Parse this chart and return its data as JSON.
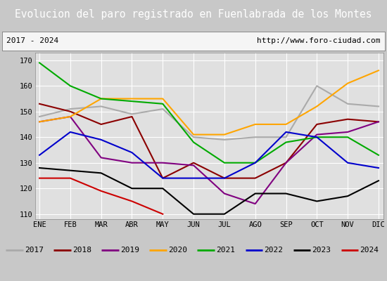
{
  "title": "Evolucion del paro registrado en Fuenlabrada de los Montes",
  "subtitle_left": "2017 - 2024",
  "subtitle_right": "http://www.foro-ciudad.com",
  "month_labels": [
    "ENE",
    "FEB",
    "MAR",
    "ABR",
    "MAY",
    "JUN",
    "JUL",
    "AGO",
    "SEP",
    "OCT",
    "NOV",
    "DIC"
  ],
  "ylim": [
    108,
    173
  ],
  "yticks": [
    110,
    120,
    130,
    140,
    150,
    160,
    170
  ],
  "series": {
    "2017": {
      "color": "#aaaaaa",
      "values": [
        148,
        151,
        152,
        149,
        151,
        140,
        139,
        140,
        140,
        160,
        153,
        152
      ]
    },
    "2018": {
      "color": "#8b0000",
      "values": [
        153,
        150,
        145,
        148,
        124,
        130,
        124,
        124,
        130,
        145,
        147,
        146
      ]
    },
    "2019": {
      "color": "#800080",
      "values": [
        146,
        148,
        132,
        130,
        130,
        129,
        118,
        114,
        130,
        141,
        142,
        146
      ]
    },
    "2020": {
      "color": "#ffa500",
      "values": [
        146,
        148,
        155,
        155,
        155,
        141,
        141,
        145,
        145,
        152,
        161,
        166
      ]
    },
    "2021": {
      "color": "#00aa00",
      "values": [
        169,
        160,
        155,
        154,
        153,
        138,
        130,
        130,
        138,
        140,
        140,
        133
      ]
    },
    "2022": {
      "color": "#0000cc",
      "values": [
        133,
        142,
        139,
        134,
        124,
        124,
        124,
        130,
        142,
        140,
        130,
        128
      ]
    },
    "2023": {
      "color": "#000000",
      "values": [
        128,
        127,
        126,
        120,
        120,
        110,
        110,
        118,
        118,
        115,
        117,
        123
      ]
    },
    "2024": {
      "color": "#cc0000",
      "values": [
        124,
        124,
        119,
        115,
        110,
        null,
        null,
        null,
        null,
        null,
        null,
        null
      ]
    }
  },
  "title_bg": "#4472c4",
  "title_color": "#ffffff",
  "plot_bg": "#e0e0e0",
  "subtitle_bg": "#f5f5f5",
  "legend_bg": "#ffffff",
  "fig_bg": "#c8c8c8",
  "title_fontsize": 10.5,
  "tick_fontsize": 7.5,
  "legend_fontsize": 8,
  "linewidth": 1.5
}
